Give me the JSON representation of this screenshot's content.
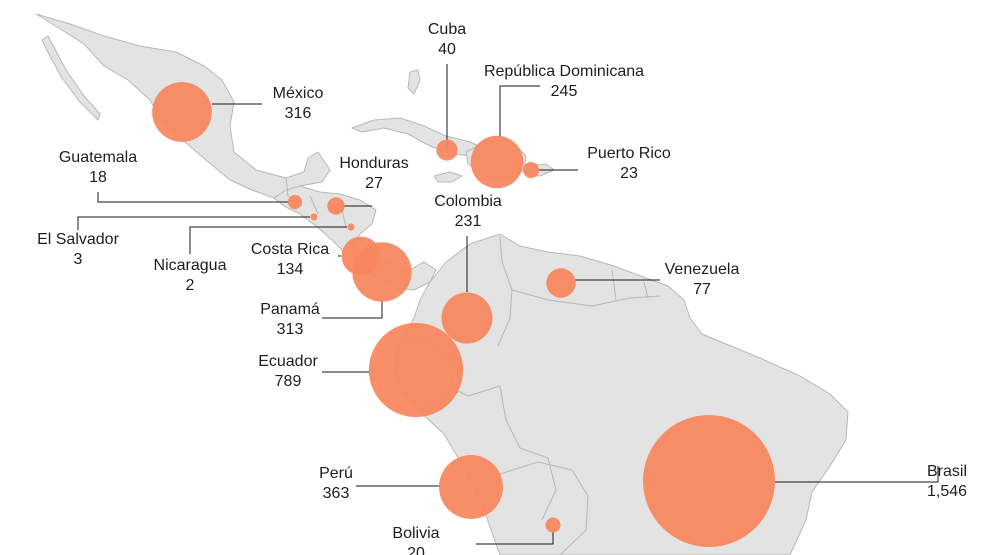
{
  "colors": {
    "bubble": "#f7875e",
    "land": "#e3e3e3",
    "border": "#b8b8b8",
    "leader": "#1a1a1a",
    "text": "#1e1e1e"
  },
  "countries": [
    {
      "id": "mexico",
      "name": "México",
      "value": "316",
      "amount": 316
    },
    {
      "id": "cuba",
      "name": "Cuba",
      "value": "40",
      "amount": 40
    },
    {
      "id": "dominican-republic",
      "name": "República Dominicana",
      "value": "245",
      "amount": 245
    },
    {
      "id": "puerto-rico",
      "name": "Puerto Rico",
      "value": "23",
      "amount": 23
    },
    {
      "id": "guatemala",
      "name": "Guatemala",
      "value": "18",
      "amount": 18
    },
    {
      "id": "honduras",
      "name": "Honduras",
      "value": "27",
      "amount": 27
    },
    {
      "id": "el-salvador",
      "name": "El Salvador",
      "value": "3",
      "amount": 3
    },
    {
      "id": "nicaragua",
      "name": "Nicaragua",
      "value": "2",
      "amount": 2
    },
    {
      "id": "costa-rica",
      "name": "Costa Rica",
      "value": "134",
      "amount": 134
    },
    {
      "id": "panama",
      "name": "Panamá",
      "value": "313",
      "amount": 313
    },
    {
      "id": "colombia",
      "name": "Colombia",
      "value": "231",
      "amount": 231
    },
    {
      "id": "venezuela",
      "name": "Venezuela",
      "value": "77",
      "amount": 77
    },
    {
      "id": "ecuador",
      "name": "Ecuador",
      "value": "789",
      "amount": 789
    },
    {
      "id": "peru",
      "name": "Perú",
      "value": "363",
      "amount": 363
    },
    {
      "id": "bolivia",
      "name": "Bolivia",
      "value": "20",
      "amount": 20
    },
    {
      "id": "brasil",
      "name": "Brasil",
      "value": "1,546",
      "amount": 1546
    }
  ]
}
